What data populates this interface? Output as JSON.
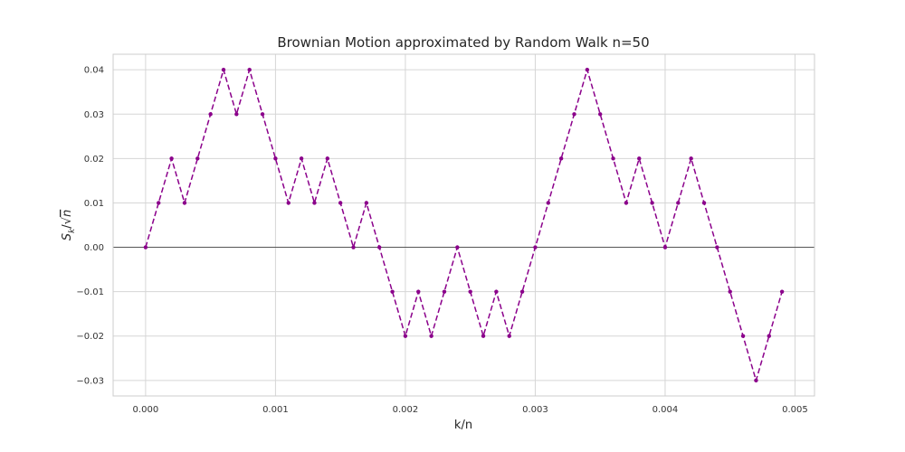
{
  "chart_data": {
    "type": "line",
    "title": "Brownian Motion approximated by Random Walk n=50",
    "xlabel": "k/n",
    "ylabel": "S_k/√n",
    "xlim": [
      -0.00025,
      0.00515
    ],
    "ylim": [
      -0.0335,
      0.0435
    ],
    "xticks": [
      0.0,
      0.001,
      0.002,
      0.003,
      0.004,
      0.005
    ],
    "xtick_labels": [
      "0.000",
      "0.001",
      "0.002",
      "0.003",
      "0.004",
      "0.005"
    ],
    "yticks": [
      -0.03,
      -0.02,
      -0.01,
      0.0,
      0.01,
      0.02,
      0.03,
      0.04
    ],
    "ytick_labels": [
      "−0.03",
      "−0.02",
      "−0.01",
      "0.00",
      "0.01",
      "0.02",
      "0.03",
      "0.04"
    ],
    "grid": true,
    "zero_line": true,
    "series": [
      {
        "color": "#8b008b",
        "linestyle": "dashed",
        "marker": "dot",
        "x": [
          0.0,
          0.0001,
          0.0002,
          0.0003,
          0.0004,
          0.0005,
          0.0006,
          0.0007,
          0.0008,
          0.0009,
          0.001,
          0.0011,
          0.0012,
          0.0013,
          0.0014,
          0.0015,
          0.0016,
          0.0017,
          0.0018,
          0.0019,
          0.002,
          0.0021,
          0.0022,
          0.0023,
          0.0024,
          0.0025,
          0.0026,
          0.0027,
          0.0028,
          0.0029,
          0.003,
          0.0031,
          0.0032,
          0.0033,
          0.0034,
          0.0035,
          0.0036,
          0.0037,
          0.0038,
          0.0039,
          0.004,
          0.0041,
          0.0042,
          0.0043,
          0.0044,
          0.0045,
          0.0046,
          0.0047,
          0.0048,
          0.0049
        ],
        "y": [
          0.0,
          0.01,
          0.02,
          0.01,
          0.02,
          0.03,
          0.04,
          0.03,
          0.04,
          0.03,
          0.02,
          0.01,
          0.02,
          0.01,
          0.02,
          0.01,
          0.0,
          0.01,
          0.0,
          -0.01,
          -0.02,
          -0.01,
          -0.02,
          -0.01,
          0.0,
          -0.01,
          -0.02,
          -0.01,
          -0.02,
          -0.01,
          0.0,
          0.01,
          0.02,
          0.03,
          0.04,
          0.03,
          0.02,
          0.01,
          0.02,
          0.01,
          0.0,
          0.01,
          0.02,
          0.01,
          0.0,
          -0.01,
          -0.02,
          -0.03,
          -0.02,
          -0.01
        ]
      }
    ]
  }
}
